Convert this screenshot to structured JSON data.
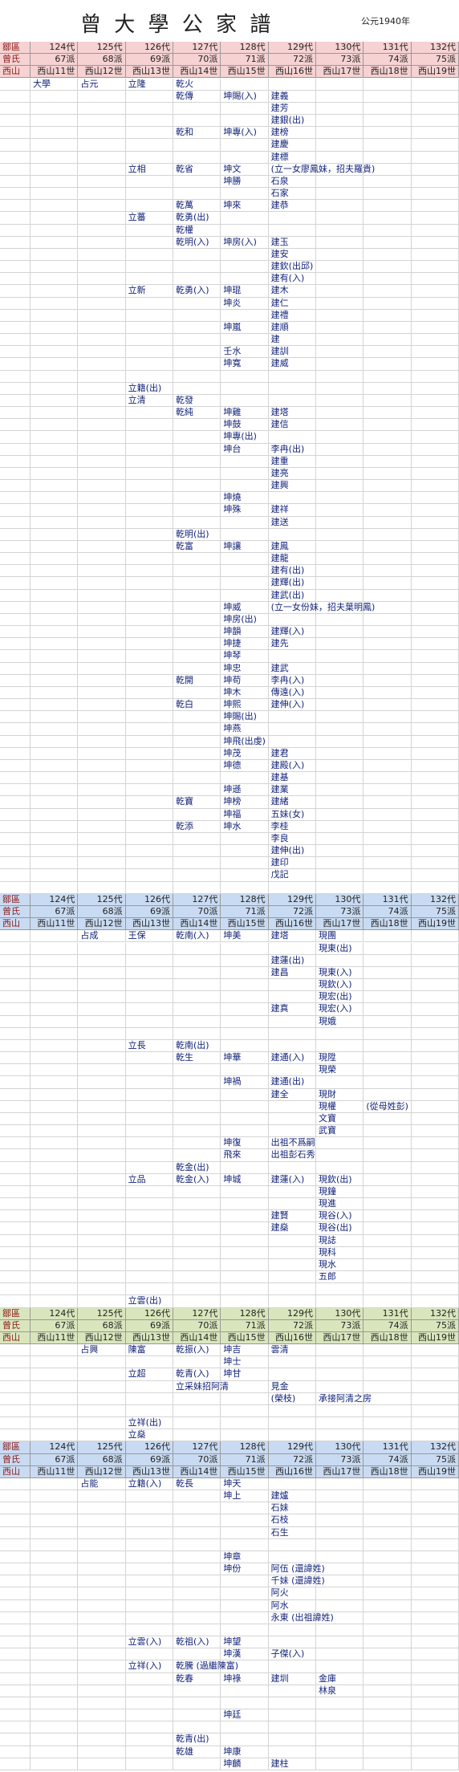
{
  "header": {
    "title": "曾 大 學 公 家 譜",
    "year": "公元1940年"
  },
  "sections": [
    {
      "color": "#f6d2d2",
      "header_rows": [
        [
          "鄒區",
          "124代",
          "125代",
          "126代",
          "127代",
          "128代",
          "129代",
          "130代",
          "131代",
          "132代"
        ],
        [
          "曾氏",
          "67派",
          "68派",
          "69派",
          "70派",
          "71派",
          "72派",
          "73派",
          "74派",
          "75派"
        ],
        [
          "西山",
          "西山11世",
          "西山12世",
          "西山13世",
          "西山14世",
          "西山15世",
          "西山16世",
          "西山17世",
          "西山18世",
          "西山19世"
        ]
      ],
      "rows": [
        [
          null,
          "大學",
          "占元",
          "立隆",
          "乾火"
        ],
        [
          null,
          null,
          null,
          null,
          "乾傳",
          "坤賜(入)",
          "建義"
        ],
        [
          null,
          null,
          null,
          null,
          null,
          null,
          "建芳"
        ],
        [
          null,
          null,
          null,
          null,
          null,
          null,
          "建銀(出)"
        ],
        [
          null,
          null,
          null,
          null,
          "乾和",
          "坤專(入)",
          "建榜"
        ],
        [
          null,
          null,
          null,
          null,
          null,
          null,
          "建慶"
        ],
        [
          null,
          null,
          null,
          null,
          null,
          null,
          "建標"
        ],
        [
          null,
          null,
          null,
          "立相",
          "乾省",
          "坤文",
          "(立一女廖鳳妹，招夫羅貴)"
        ],
        [
          null,
          null,
          null,
          null,
          null,
          "坤勝",
          "石泉"
        ],
        [
          null,
          null,
          null,
          null,
          null,
          null,
          "石家"
        ],
        [
          null,
          null,
          null,
          null,
          "乾萬",
          "坤來",
          "建恭"
        ],
        [
          null,
          null,
          null,
          "立蕃",
          "乾勇(出)"
        ],
        [
          null,
          null,
          null,
          null,
          "乾權"
        ],
        [
          null,
          null,
          null,
          null,
          "乾明(入)",
          "坤房(入)",
          "建玉"
        ],
        [
          null,
          null,
          null,
          null,
          null,
          null,
          "建安"
        ],
        [
          null,
          null,
          null,
          null,
          null,
          null,
          "建欽(出邱)"
        ],
        [
          null,
          null,
          null,
          null,
          null,
          null,
          "建有(入)"
        ],
        [
          null,
          null,
          null,
          "立新",
          "乾勇(入)",
          "坤琨",
          "建木"
        ],
        [
          null,
          null,
          null,
          null,
          null,
          "坤炎",
          "建仁"
        ],
        [
          null,
          null,
          null,
          null,
          null,
          null,
          "建禮"
        ],
        [
          null,
          null,
          null,
          null,
          null,
          "坤嵐",
          "建順"
        ],
        [
          null,
          null,
          null,
          null,
          null,
          null,
          "建"
        ],
        [
          null,
          null,
          null,
          null,
          null,
          "壬水",
          "建訓"
        ],
        [
          null,
          null,
          null,
          null,
          null,
          "坤寬",
          "建威"
        ],
        [],
        [
          null,
          null,
          null,
          "立籍(出)"
        ],
        [
          null,
          null,
          null,
          "立清",
          "乾發"
        ],
        [
          null,
          null,
          null,
          null,
          "乾純",
          "坤雞",
          "建塔"
        ],
        [
          null,
          null,
          null,
          null,
          null,
          "坤鼓",
          "建信"
        ],
        [
          null,
          null,
          null,
          null,
          null,
          "坤專(出)"
        ],
        [
          null,
          null,
          null,
          null,
          null,
          "坤台",
          "李冉(出)"
        ],
        [
          null,
          null,
          null,
          null,
          null,
          null,
          "建重"
        ],
        [
          null,
          null,
          null,
          null,
          null,
          null,
          "建亮"
        ],
        [
          null,
          null,
          null,
          null,
          null,
          null,
          "建興"
        ],
        [
          null,
          null,
          null,
          null,
          null,
          "坤燒"
        ],
        [
          null,
          null,
          null,
          null,
          null,
          "坤殊",
          "建祥"
        ],
        [
          null,
          null,
          null,
          null,
          null,
          null,
          "建送"
        ],
        [
          null,
          null,
          null,
          null,
          "乾明(出)"
        ],
        [
          null,
          null,
          null,
          null,
          "乾富",
          "坤讓",
          "建鳳"
        ],
        [
          null,
          null,
          null,
          null,
          null,
          null,
          "建龍"
        ],
        [
          null,
          null,
          null,
          null,
          null,
          null,
          "建有(出)"
        ],
        [
          null,
          null,
          null,
          null,
          null,
          null,
          "建輝(出)"
        ],
        [
          null,
          null,
          null,
          null,
          null,
          null,
          "建武(出)"
        ],
        [
          null,
          null,
          null,
          null,
          null,
          "坤威",
          "(立一女份妹，招夫葉明鳳)"
        ],
        [
          null,
          null,
          null,
          null,
          null,
          "坤房(出)"
        ],
        [
          null,
          null,
          null,
          null,
          null,
          "坤韻",
          "建輝(入)"
        ],
        [
          null,
          null,
          null,
          null,
          null,
          "坤捷",
          "建先"
        ],
        [
          null,
          null,
          null,
          null,
          null,
          "坤琴"
        ],
        [
          null,
          null,
          null,
          null,
          null,
          "坤忠",
          "建武"
        ],
        [
          null,
          null,
          null,
          null,
          "乾開",
          "坤苟",
          "李冉(入)"
        ],
        [
          null,
          null,
          null,
          null,
          null,
          "坤木",
          "傳遠(入)"
        ],
        [
          null,
          null,
          null,
          null,
          "乾白",
          "坤熙",
          "建伸(入)"
        ],
        [
          null,
          null,
          null,
          null,
          null,
          "坤賜(出)"
        ],
        [
          null,
          null,
          null,
          null,
          null,
          "坤燕"
        ],
        [
          null,
          null,
          null,
          null,
          null,
          "坤飛(出虔)"
        ],
        [
          null,
          null,
          null,
          null,
          null,
          "坤茂",
          "建君"
        ],
        [
          null,
          null,
          null,
          null,
          null,
          "坤德",
          "建殿(入)"
        ],
        [
          null,
          null,
          null,
          null,
          null,
          null,
          "建基"
        ],
        [
          null,
          null,
          null,
          null,
          null,
          "坤遜",
          "建業"
        ],
        [
          null,
          null,
          null,
          null,
          "乾寶",
          "坤榜",
          "建緒"
        ],
        [
          null,
          null,
          null,
          null,
          null,
          "坤福",
          "五妹(女)"
        ],
        [
          null,
          null,
          null,
          null,
          "乾添",
          "坤水",
          "李桂"
        ],
        [
          null,
          null,
          null,
          null,
          null,
          null,
          "李良"
        ],
        [
          null,
          null,
          null,
          null,
          null,
          null,
          "建伸(出)"
        ],
        [
          null,
          null,
          null,
          null,
          null,
          null,
          "建印"
        ],
        [
          null,
          null,
          null,
          null,
          null,
          null,
          "戊記"
        ],
        []
      ]
    },
    {
      "color": "#c9dbf2",
      "header_rows": [
        [
          "鄒區",
          "124代",
          "125代",
          "126代",
          "127代",
          "128代",
          "129代",
          "130代",
          "131代",
          "132代"
        ],
        [
          "曾氏",
          "67派",
          "68派",
          "69派",
          "70派",
          "71派",
          "72派",
          "73派",
          "74派",
          "75派"
        ],
        [
          "西山",
          "西山11世",
          "西山12世",
          "西山13世",
          "西山14世",
          "西山15世",
          "西山16世",
          "西山17世",
          "西山18世",
          "西山19世"
        ]
      ],
      "rows": [
        [
          null,
          null,
          "占成",
          "王保",
          "乾南(入)",
          "坤美",
          "建塔",
          "現團"
        ],
        [
          null,
          null,
          null,
          null,
          null,
          null,
          null,
          "現東(出)"
        ],
        [
          null,
          null,
          null,
          null,
          null,
          null,
          "建蓮(出)"
        ],
        [
          null,
          null,
          null,
          null,
          null,
          null,
          "建昌",
          "現東(入)"
        ],
        [
          null,
          null,
          null,
          null,
          null,
          null,
          null,
          "現欽(入)"
        ],
        [
          null,
          null,
          null,
          null,
          null,
          null,
          null,
          "現宏(出)"
        ],
        [
          null,
          null,
          null,
          null,
          null,
          null,
          "建真",
          "現宏(入)"
        ],
        [
          null,
          null,
          null,
          null,
          null,
          null,
          null,
          "現娥"
        ],
        [],
        [
          null,
          null,
          null,
          "立長",
          "乾南(出)"
        ],
        [
          null,
          null,
          null,
          null,
          "乾生",
          "坤華",
          "建通(入)",
          "現陞"
        ],
        [
          null,
          null,
          null,
          null,
          null,
          null,
          null,
          "現榮"
        ],
        [
          null,
          null,
          null,
          null,
          null,
          "坤禍",
          "建通(出)"
        ],
        [
          null,
          null,
          null,
          null,
          null,
          null,
          "建全",
          "現財"
        ],
        [
          null,
          null,
          null,
          null,
          null,
          null,
          null,
          "現權",
          "(從母姓彭)"
        ],
        [
          null,
          null,
          null,
          null,
          null,
          null,
          null,
          "文寶"
        ],
        [
          null,
          null,
          null,
          null,
          null,
          null,
          null,
          "武寶"
        ],
        [
          null,
          null,
          null,
          null,
          null,
          "坤復",
          "出祖不爲嗣"
        ],
        [
          null,
          null,
          null,
          null,
          null,
          "飛來",
          "出祖彭石秀"
        ],
        [
          null,
          null,
          null,
          null,
          "乾金(出)"
        ],
        [
          null,
          null,
          null,
          "立品",
          "乾金(入)",
          "坤城",
          "建蓮(入)",
          "現欽(出)"
        ],
        [
          null,
          null,
          null,
          null,
          null,
          null,
          null,
          "現鐘"
        ],
        [
          null,
          null,
          null,
          null,
          null,
          null,
          null,
          "現進"
        ],
        [
          null,
          null,
          null,
          null,
          null,
          null,
          "建賢",
          "現谷(入)"
        ],
        [
          null,
          null,
          null,
          null,
          null,
          null,
          "建燊",
          "現谷(出)"
        ],
        [
          null,
          null,
          null,
          null,
          null,
          null,
          null,
          "現誌"
        ],
        [
          null,
          null,
          null,
          null,
          null,
          null,
          null,
          "現科"
        ],
        [
          null,
          null,
          null,
          null,
          null,
          null,
          null,
          "現水"
        ],
        [
          null,
          null,
          null,
          null,
          null,
          null,
          null,
          "五郎"
        ],
        [],
        [
          null,
          null,
          null,
          "立雲(出)"
        ]
      ]
    },
    {
      "color": "#d9e6bd",
      "header_rows": [
        [
          "鄒區",
          "124代",
          "125代",
          "126代",
          "127代",
          "128代",
          "129代",
          "130代",
          "131代",
          "132代"
        ],
        [
          "曾氏",
          "67派",
          "68派",
          "69派",
          "70派",
          "71派",
          "72派",
          "73派",
          "74派",
          "75派"
        ],
        [
          "西山",
          "西山11世",
          "西山12世",
          "西山13世",
          "西山14世",
          "西山15世",
          "西山16世",
          "西山17世",
          "西山18世",
          "西山19世"
        ]
      ],
      "rows": [
        [
          null,
          null,
          "占興",
          "陳富",
          "乾振(入)",
          "坤吉",
          "雲清"
        ],
        [
          null,
          null,
          null,
          null,
          null,
          "坤士"
        ],
        [
          null,
          null,
          null,
          "立超",
          "乾青(入)",
          "坤甘"
        ],
        [
          null,
          null,
          null,
          null,
          "立采妹招阿清",
          null,
          "見金"
        ],
        [
          null,
          null,
          null,
          null,
          null,
          null,
          "(榮枝)",
          "承接阿清之房"
        ],
        [],
        [
          null,
          null,
          null,
          "立祥(出)"
        ],
        [
          null,
          null,
          null,
          "立燊"
        ]
      ]
    },
    {
      "color": "#c9dbf2",
      "header_rows": [
        [
          "鄒區",
          "124代",
          "125代",
          "126代",
          "127代",
          "128代",
          "129代",
          "130代",
          "131代",
          "132代"
        ],
        [
          "曾氏",
          "67派",
          "68派",
          "69派",
          "70派",
          "71派",
          "72派",
          "73派",
          "74派",
          "75派"
        ],
        [
          "西山",
          "西山11世",
          "西山12世",
          "西山13世",
          "西山14世",
          "西山15世",
          "西山16世",
          "西山17世",
          "西山18世",
          "西山19世"
        ]
      ],
      "rows": [
        [
          null,
          null,
          "占能",
          "立籍(入)",
          "乾長",
          "坤天"
        ],
        [
          null,
          null,
          null,
          null,
          null,
          "坤上",
          "建爐"
        ],
        [
          null,
          null,
          null,
          null,
          null,
          null,
          "石妹"
        ],
        [
          null,
          null,
          null,
          null,
          null,
          null,
          "石枝"
        ],
        [
          null,
          null,
          null,
          null,
          null,
          null,
          "石生"
        ],
        [],
        [
          null,
          null,
          null,
          null,
          null,
          "坤章"
        ],
        [
          null,
          null,
          null,
          null,
          null,
          "坤份",
          "阿伍 (還諱姓)"
        ],
        [
          null,
          null,
          null,
          null,
          null,
          null,
          "千妹 (還諱姓)"
        ],
        [
          null,
          null,
          null,
          null,
          null,
          null,
          "阿火"
        ],
        [
          null,
          null,
          null,
          null,
          null,
          null,
          "阿水"
        ],
        [
          null,
          null,
          null,
          null,
          null,
          null,
          "永東 (出祖諱姓)"
        ],
        [],
        [
          null,
          null,
          null,
          "立雲(入)",
          "乾祖(入)",
          "坤望"
        ],
        [
          null,
          null,
          null,
          null,
          null,
          "坤漢",
          "子傑(入)"
        ],
        [
          null,
          null,
          null,
          "立祥(入)",
          "乾騰 (過繼陳富)"
        ],
        [
          null,
          null,
          null,
          null,
          "乾春",
          "坤祿",
          "建圳",
          "金庫"
        ],
        [
          null,
          null,
          null,
          null,
          null,
          null,
          null,
          "林泉"
        ],
        [],
        [
          null,
          null,
          null,
          null,
          null,
          "坤廷"
        ],
        [],
        [
          null,
          null,
          null,
          null,
          "乾青(出)"
        ],
        [
          null,
          null,
          null,
          null,
          "乾雄",
          "坤康"
        ],
        [
          null,
          null,
          null,
          null,
          null,
          "坤麟",
          "建柱"
        ]
      ]
    }
  ]
}
